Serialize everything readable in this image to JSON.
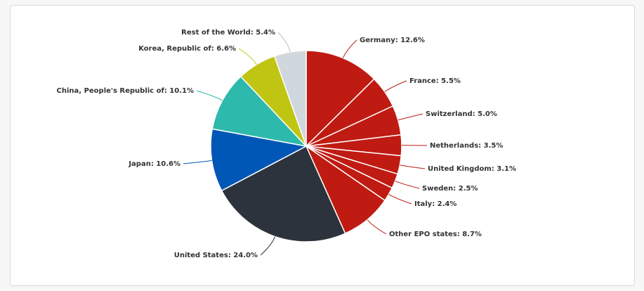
{
  "chart_data": {
    "type": "pie",
    "start_angle_deg": 0,
    "direction": "clockwise",
    "slices": [
      {
        "label": "Germany",
        "value": 12.6,
        "color": "#bf1b12",
        "text": "Germany: 12.6%"
      },
      {
        "label": "France",
        "value": 5.5,
        "color": "#bf1b12",
        "text": "France: 5.5%"
      },
      {
        "label": "Switzerland",
        "value": 5.0,
        "color": "#bf1b12",
        "text": "Switzerland: 5.0%"
      },
      {
        "label": "Netherlands",
        "value": 3.5,
        "color": "#bf1b12",
        "text": "Netherlands: 3.5%"
      },
      {
        "label": "United Kingdom",
        "value": 3.1,
        "color": "#bf1b12",
        "text": "United Kingdom: 3.1%"
      },
      {
        "label": "Sweden",
        "value": 2.5,
        "color": "#bf1b12",
        "text": "Sweden: 2.5%"
      },
      {
        "label": "Italy",
        "value": 2.4,
        "color": "#bf1b12",
        "text": "Italy: 2.4%"
      },
      {
        "label": "Other EPO states",
        "value": 8.7,
        "color": "#bf1b12",
        "text": "Other EPO states: 8.7%"
      },
      {
        "label": "United States",
        "value": 24.0,
        "color": "#2c333d",
        "text": "United States: 24.0%"
      },
      {
        "label": "Japan",
        "value": 10.6,
        "color": "#0057b6",
        "text": "Japan: 10.6%"
      },
      {
        "label": "China, People's Republic of",
        "value": 10.1,
        "color": "#2db9ac",
        "text": "China, People's Republic of: 10.1%"
      },
      {
        "label": "Korea, Republic of",
        "value": 6.6,
        "color": "#c0c514",
        "text": "Korea, Republic of: 6.6%"
      },
      {
        "label": "Rest of the World",
        "value": 5.4,
        "color": "#d0d7dd",
        "text": "Rest of the World: 5.4%"
      }
    ]
  }
}
